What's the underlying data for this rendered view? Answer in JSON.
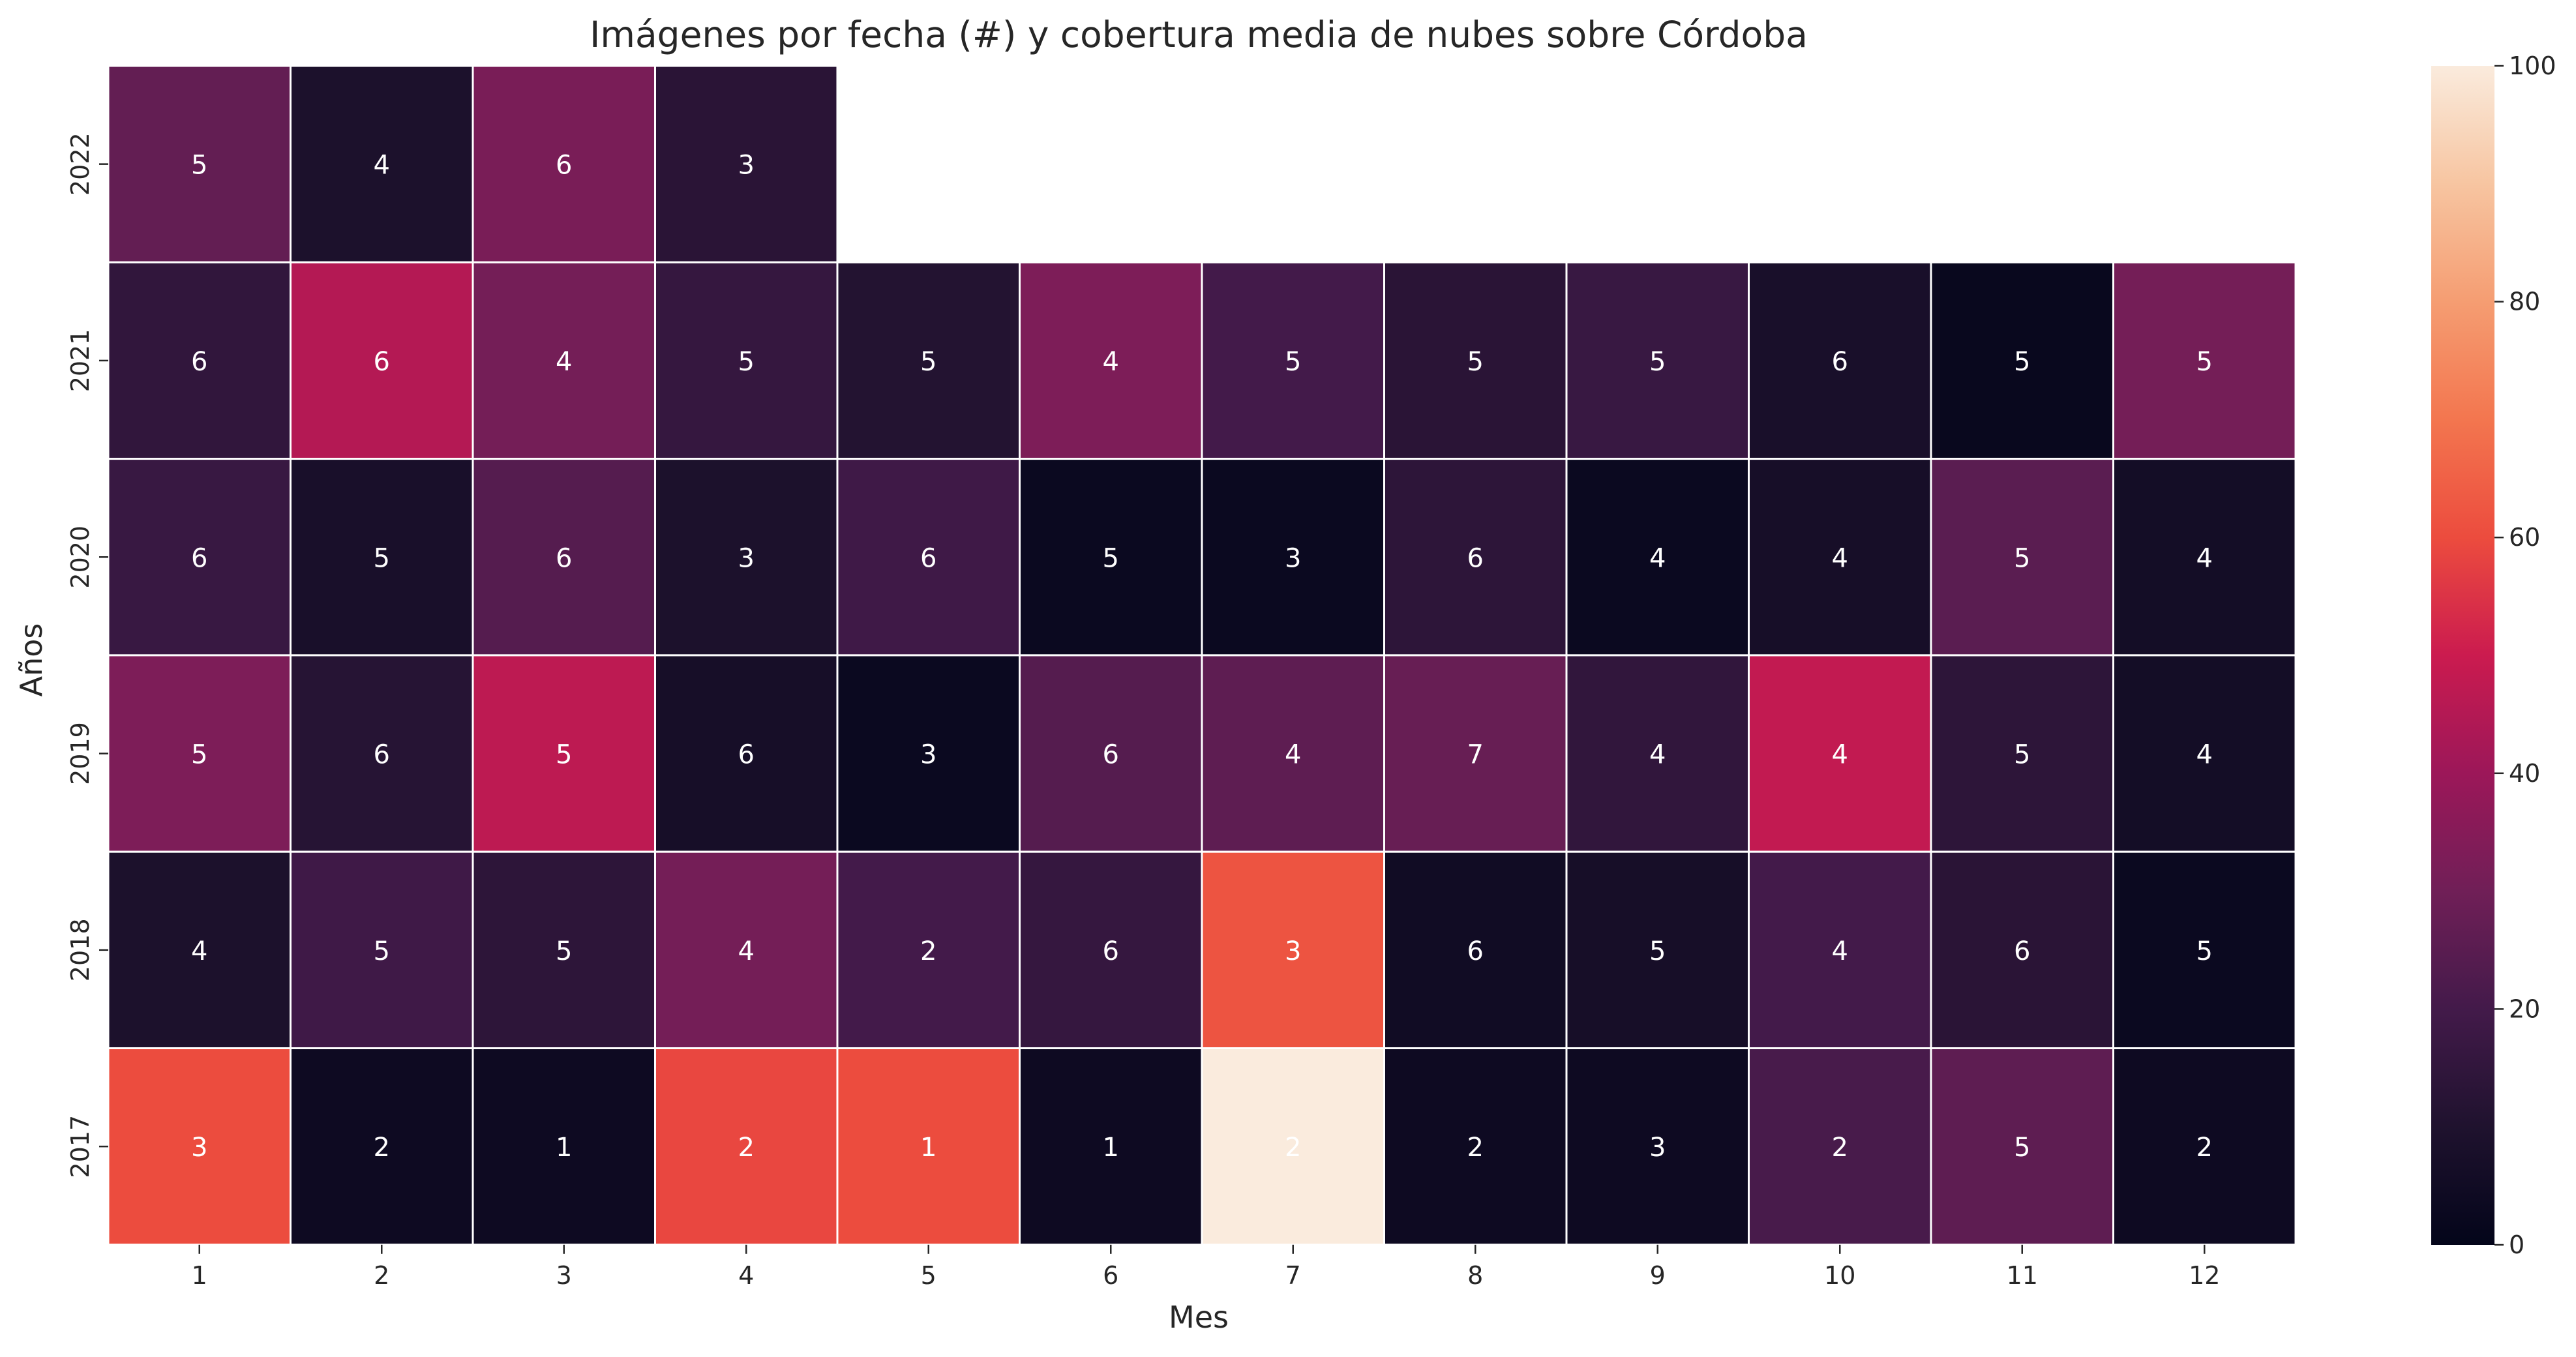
{
  "chart_data": {
    "type": "heatmap",
    "title": "Imágenes por fecha (#) y cobertura media de nubes sobre Córdoba",
    "xlabel": "Mes",
    "ylabel": "Años",
    "x_categories": [
      "1",
      "2",
      "3",
      "4",
      "5",
      "6",
      "7",
      "8",
      "9",
      "10",
      "11",
      "12"
    ],
    "y_categories": [
      "2022",
      "2021",
      "2020",
      "2019",
      "2018",
      "2017"
    ],
    "cloud_cover": [
      [
        27,
        9,
        32,
        13,
        null,
        null,
        null,
        null,
        null,
        null,
        null,
        null
      ],
      [
        15,
        45,
        31,
        16,
        11,
        33,
        20,
        13,
        17,
        8,
        2,
        31
      ],
      [
        17,
        8,
        24,
        9,
        19,
        3,
        3,
        14,
        3,
        7,
        25,
        6
      ],
      [
        33,
        12,
        47,
        7,
        3,
        24,
        26,
        28,
        15,
        48,
        14,
        6
      ],
      [
        9,
        19,
        14,
        31,
        20,
        16,
        62,
        5,
        7,
        20,
        13,
        3
      ],
      [
        60,
        4,
        4,
        59,
        60,
        4,
        100,
        4,
        4,
        21,
        26,
        4
      ]
    ],
    "annotations": [
      [
        5,
        4,
        6,
        3,
        null,
        null,
        null,
        null,
        null,
        null,
        null,
        null
      ],
      [
        6,
        6,
        4,
        5,
        5,
        4,
        5,
        5,
        5,
        6,
        5,
        5
      ],
      [
        6,
        5,
        6,
        3,
        6,
        5,
        3,
        6,
        4,
        4,
        5,
        4
      ],
      [
        5,
        6,
        5,
        6,
        3,
        6,
        4,
        7,
        4,
        4,
        5,
        4
      ],
      [
        4,
        5,
        5,
        4,
        2,
        6,
        3,
        6,
        5,
        4,
        6,
        5
      ],
      [
        3,
        2,
        1,
        2,
        1,
        1,
        2,
        2,
        3,
        2,
        5,
        2
      ]
    ],
    "vmin": 0,
    "vmax": 100,
    "colorbar_ticks": [
      "0",
      "20",
      "40",
      "60",
      "80",
      "100"
    ],
    "colormap": "rocket",
    "cell_border_color": "#ffffff",
    "annotation_color": "#ffffff",
    "legend": "colorbar right"
  }
}
